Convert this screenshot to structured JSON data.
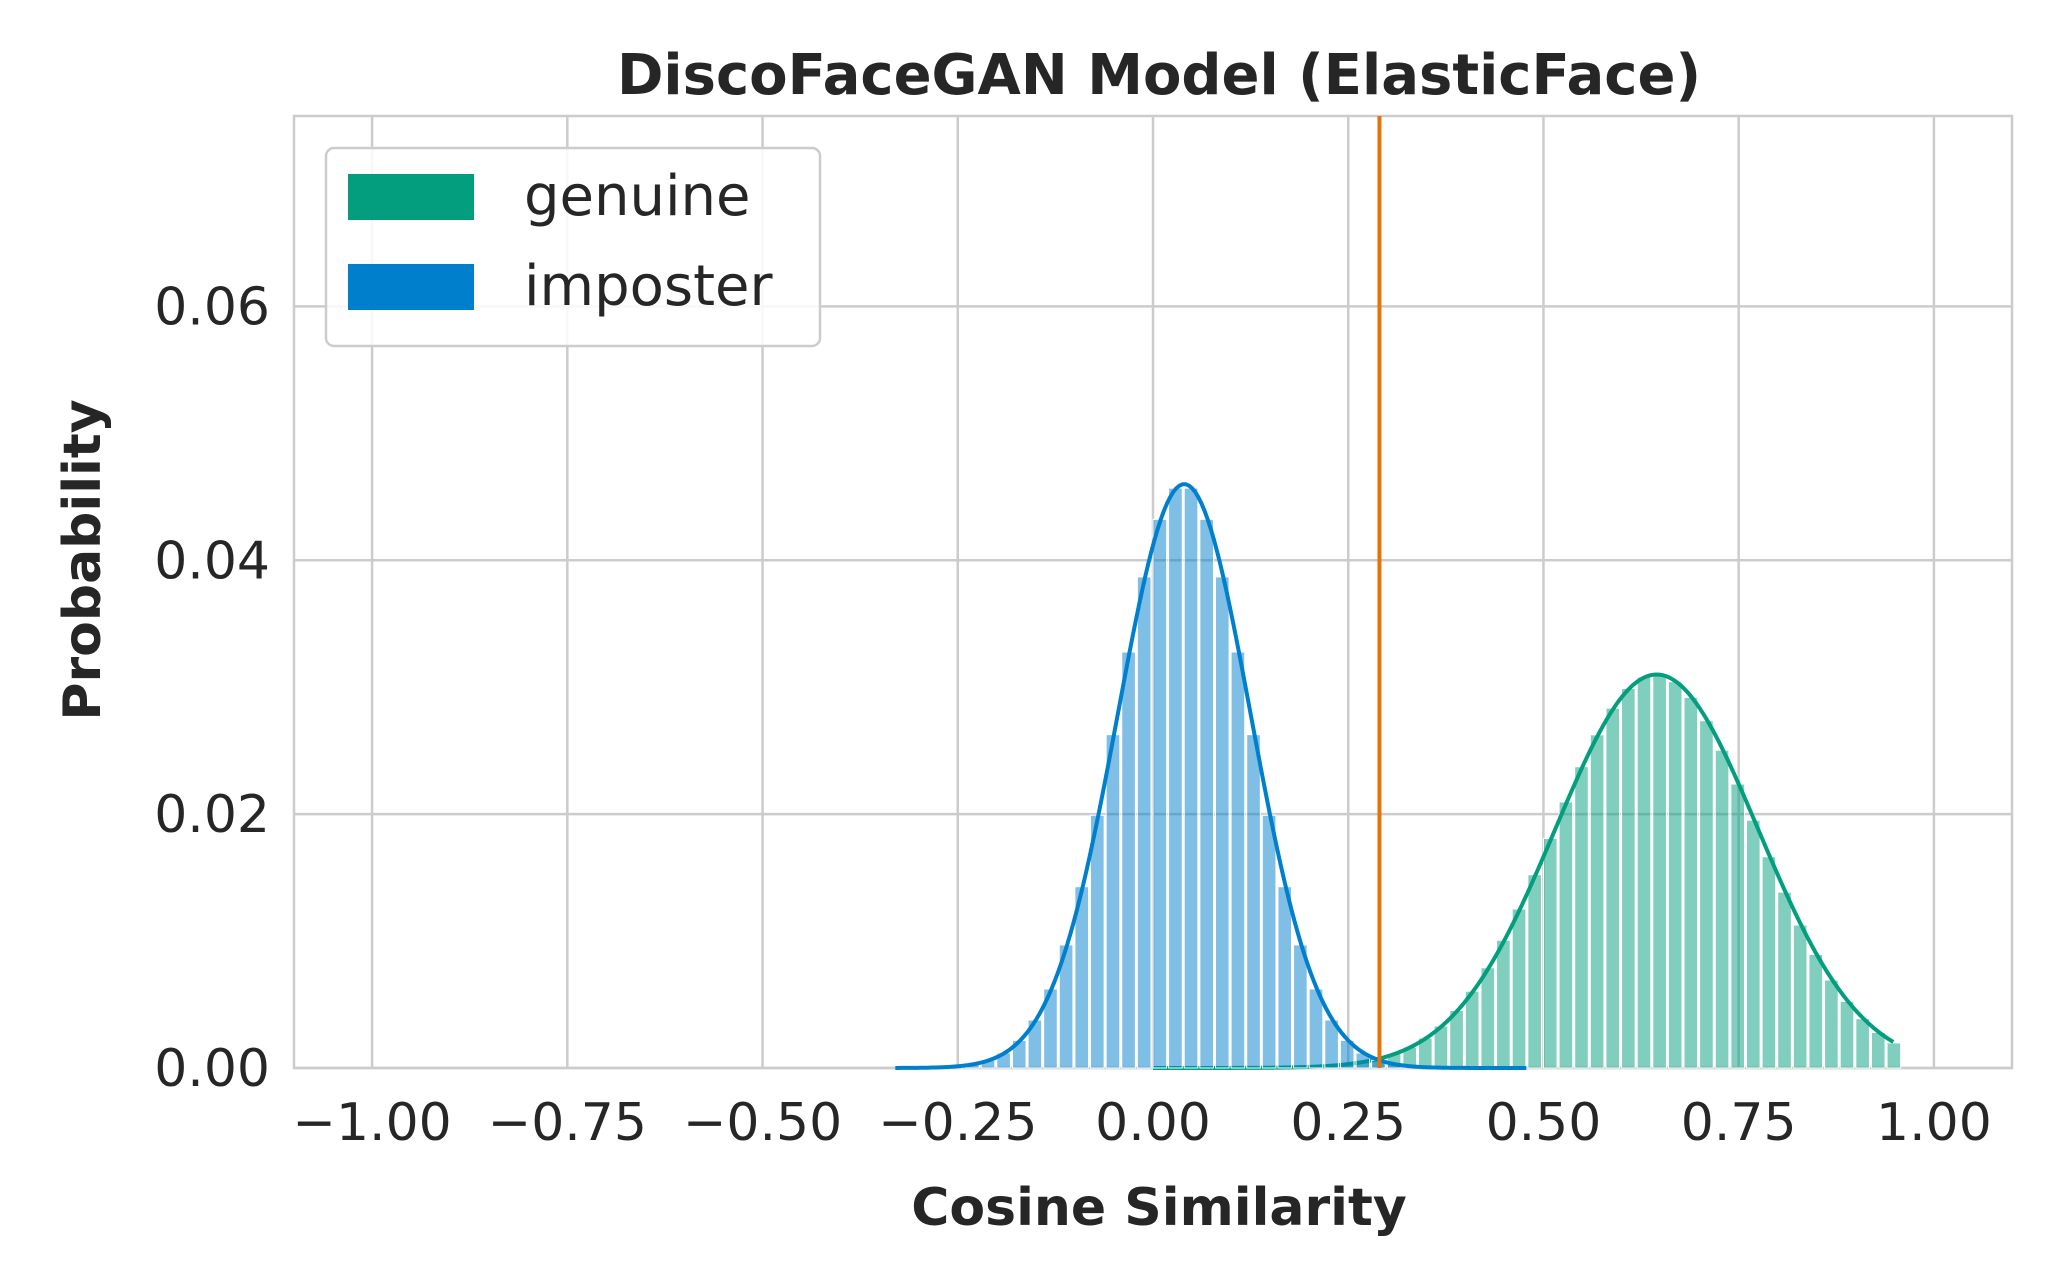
{
  "chart_data": {
    "type": "histogram",
    "title": "DiscoFaceGAN Model (ElasticFace)",
    "xlabel": "Cosine Similarity",
    "ylabel": "Probability",
    "xlim": [
      -1.1,
      1.1
    ],
    "ylim": [
      0,
      0.075
    ],
    "xticks": [
      -1.0,
      -0.75,
      -0.5,
      -0.25,
      0.0,
      0.25,
      0.5,
      0.75,
      1.0
    ],
    "xtick_labels": [
      "−1.00",
      "−0.75",
      "−0.50",
      "−0.25",
      "0.00",
      "0.25",
      "0.50",
      "0.75",
      "1.00"
    ],
    "yticks": [
      0.0,
      0.02,
      0.04,
      0.06
    ],
    "ytick_labels": [
      "0.00",
      "0.02",
      "0.04",
      "0.06"
    ],
    "grid": true,
    "legend_position": "top-left",
    "threshold": 0.29,
    "threshold_color": "#e8710a",
    "series": [
      {
        "name": "genuine",
        "color": "#029e7d",
        "distribution": "normal",
        "mean": 0.645,
        "std": 0.13,
        "peak": 0.031,
        "range": [
          0.0,
          0.95
        ]
      },
      {
        "name": "imposter",
        "color": "#0080cc",
        "distribution": "normal",
        "mean": 0.04,
        "std": 0.085,
        "peak": 0.046,
        "range": [
          -0.33,
          0.48
        ]
      }
    ],
    "bin_width": 0.02
  }
}
